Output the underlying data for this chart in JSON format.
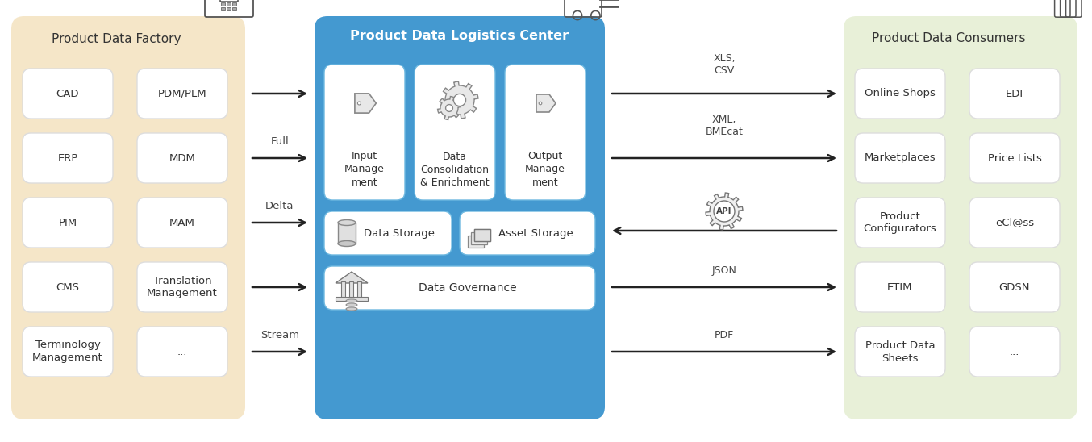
{
  "bg_color": "#ffffff",
  "factory_bg": "#f5e6c8",
  "center_bg": "#4499d0",
  "consumers_bg": "#e8f0d8",
  "title_factory": "Product Data Factory",
  "title_center": "Product Data Logistics Center",
  "title_consumers": "Product Data Consumers",
  "factory_items": [
    [
      "CAD",
      "PDM/PLM"
    ],
    [
      "ERP",
      "MDM"
    ],
    [
      "PIM",
      "MAM"
    ],
    [
      "CMS",
      "Translation\nManagement"
    ],
    [
      "Terminology\nManagement",
      "..."
    ]
  ],
  "consumers_items": [
    [
      "Online Shops",
      "EDI"
    ],
    [
      "Marketplaces",
      "Price Lists"
    ],
    [
      "Product\nConfigurators",
      "eCl@ss"
    ],
    [
      "ETIM",
      "GDSN"
    ],
    [
      "Product Data\nSheets",
      "..."
    ]
  ],
  "center_top_items": [
    "Input\nManage\nment",
    "Data\nConsolidation\n& Enrichment",
    "Output\nManage\nment"
  ],
  "center_storage": [
    "Data Storage",
    "Asset Storage"
  ],
  "center_governance": "Data Governance",
  "left_arrow_labels": [
    "",
    "Full",
    "Delta",
    "",
    "Stream"
  ],
  "right_labels": [
    "XLS,\nCSV",
    "XML,\nBMEcat",
    "API",
    "JSON",
    "PDF"
  ],
  "font_family": "DejaVu Sans"
}
